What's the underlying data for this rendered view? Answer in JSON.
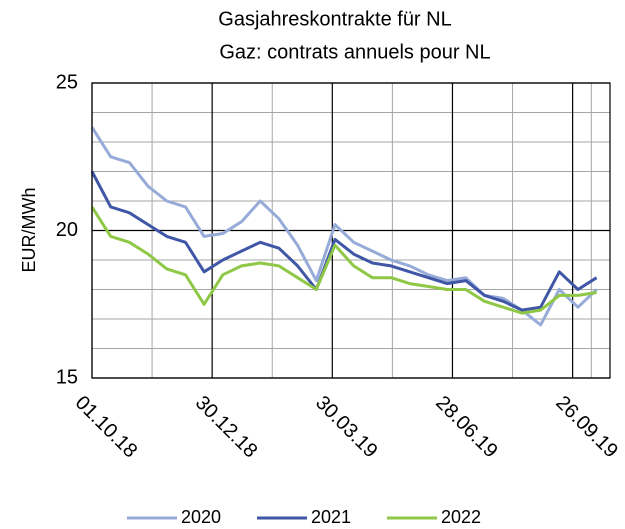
{
  "chart_data": {
    "type": "line",
    "title": "Gasjahreskontrakte für NL",
    "subtitle": "Gaz: contrats annuels pour NL",
    "y_label": "EUR/MWh",
    "x": [
      "01.10.18",
      "15.10.18",
      "29.10.18",
      "12.11.18",
      "26.11.18",
      "10.12.18",
      "24.12.18",
      "07.01.19",
      "21.01.19",
      "04.02.19",
      "18.02.19",
      "04.03.19",
      "18.03.19",
      "01.04.19",
      "15.04.19",
      "29.04.19",
      "13.05.19",
      "27.05.19",
      "10.06.19",
      "24.06.19",
      "08.07.19",
      "22.07.19",
      "05.08.19",
      "19.08.19",
      "02.09.19",
      "16.09.19",
      "30.09.19",
      "14.10.19"
    ],
    "series": [
      {
        "name": "2020",
        "color": "#97abd8",
        "values": [
          23.5,
          22.5,
          22.3,
          21.5,
          21.0,
          20.8,
          19.8,
          19.9,
          20.3,
          21.0,
          20.4,
          19.5,
          18.3,
          20.2,
          19.6,
          19.3,
          19.0,
          18.8,
          18.5,
          18.3,
          18.4,
          17.8,
          17.7,
          17.3,
          16.8,
          18.0,
          17.4,
          18.0
        ]
      },
      {
        "name": "2021",
        "color": "#3f57a6",
        "values": [
          22.0,
          20.8,
          20.6,
          20.2,
          19.8,
          19.6,
          18.6,
          19.0,
          19.3,
          19.6,
          19.4,
          18.8,
          18.0,
          19.7,
          19.2,
          18.9,
          18.8,
          18.6,
          18.4,
          18.2,
          18.3,
          17.8,
          17.6,
          17.3,
          17.4,
          18.6,
          18.0,
          18.4
        ]
      },
      {
        "name": "2022",
        "color": "#8fc846",
        "values": [
          20.8,
          19.8,
          19.6,
          19.2,
          18.7,
          18.5,
          17.5,
          18.5,
          18.8,
          18.9,
          18.8,
          18.4,
          18.0,
          19.5,
          18.8,
          18.4,
          18.4,
          18.2,
          18.1,
          18.0,
          18.0,
          17.6,
          17.4,
          17.2,
          17.3,
          17.8,
          17.8,
          17.9
        ]
      }
    ],
    "xlim": [
      "01.10.18",
      "24.10.19"
    ],
    "xticks": [
      "01.10.18",
      "30.12.18",
      "30.03.19",
      "28.06.19",
      "26.09.19"
    ],
    "x_minor_ticks": [
      "15.11.18",
      "13.02.19",
      "14.05.19",
      "12.08.19",
      "10.10.19"
    ],
    "ylim": [
      15,
      25
    ],
    "yticks": [
      15,
      20,
      25
    ],
    "y_minor_ticks": [
      16,
      17,
      18,
      19,
      21,
      22,
      23,
      24
    ],
    "grid": true,
    "legend": "bottom"
  }
}
